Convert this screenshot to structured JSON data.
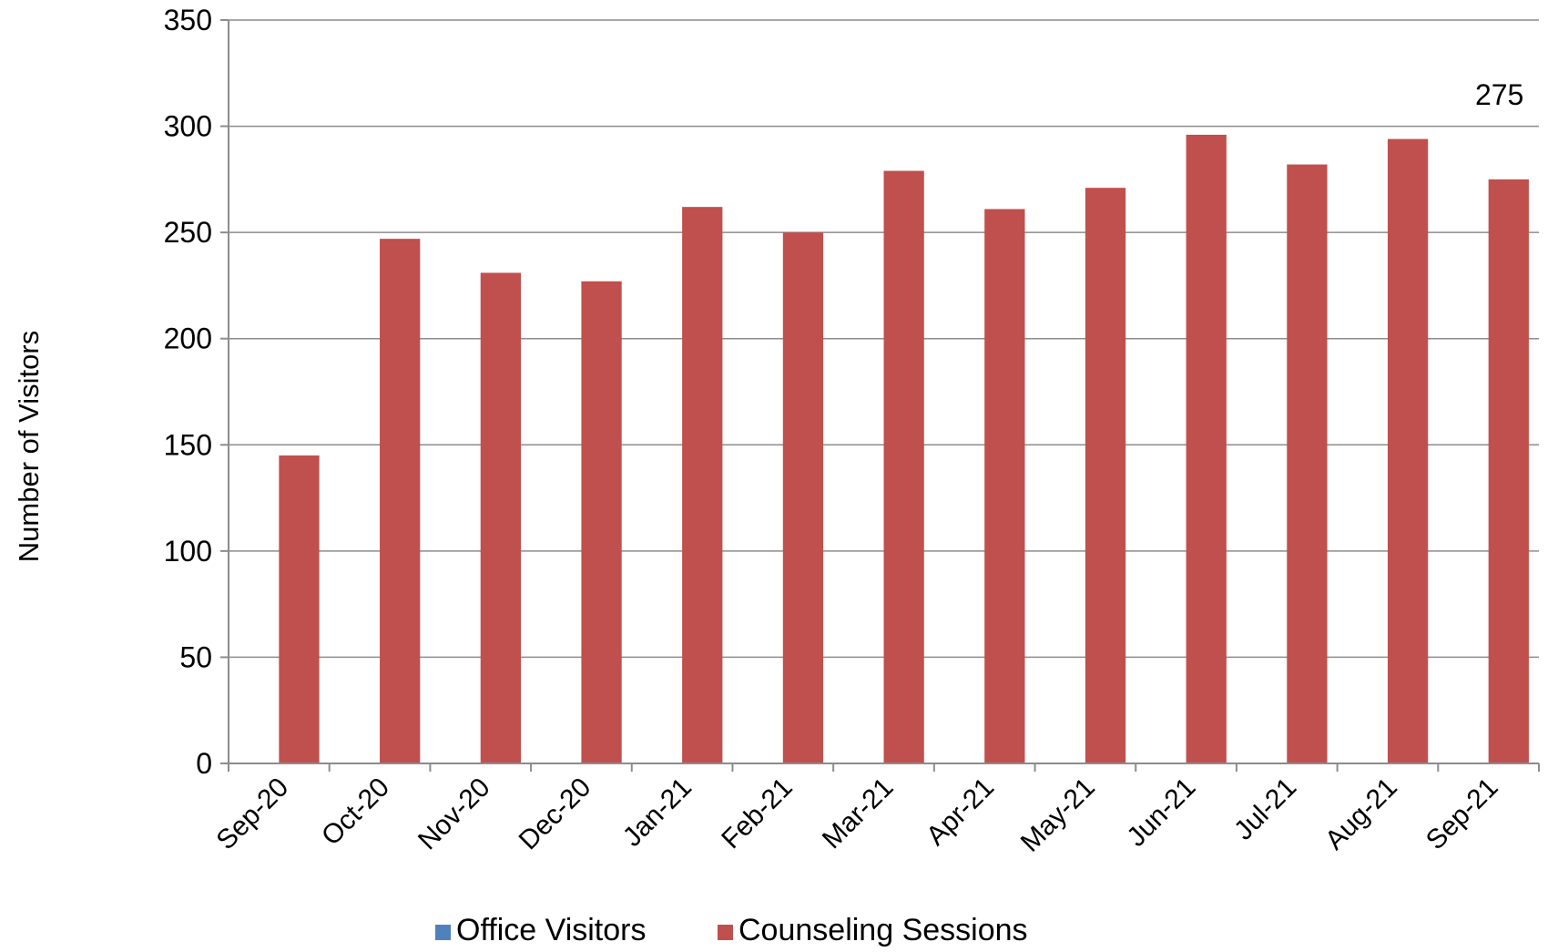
{
  "chart_data": {
    "type": "bar",
    "title": "",
    "xlabel": "",
    "ylabel": "Number of Visitors",
    "ylim": [
      0,
      350
    ],
    "yticks": [
      0,
      50,
      100,
      150,
      200,
      250,
      300,
      350
    ],
    "grid": true,
    "legend_position": "bottom",
    "categories": [
      "Sep-20",
      "Oct-20",
      "Nov-20",
      "Dec-20",
      "Jan-21",
      "Feb-21",
      "Mar-21",
      "Apr-21",
      "May-21",
      "Jun-21",
      "Jul-21",
      "Aug-21",
      "Sep-21"
    ],
    "series": [
      {
        "name": "Office Visitors",
        "color": "#4F81BD",
        "values": [
          0,
          0,
          0,
          0,
          0,
          0,
          0,
          0,
          0,
          0,
          0,
          0,
          0
        ]
      },
      {
        "name": "Counseling Sessions",
        "color": "#C0504D",
        "values": [
          145,
          247,
          231,
          227,
          262,
          250,
          279,
          261,
          271,
          296,
          282,
          294,
          275
        ]
      }
    ],
    "data_labels": [
      {
        "series": "Counseling Sessions",
        "category": "Sep-21",
        "text": "275"
      }
    ]
  }
}
